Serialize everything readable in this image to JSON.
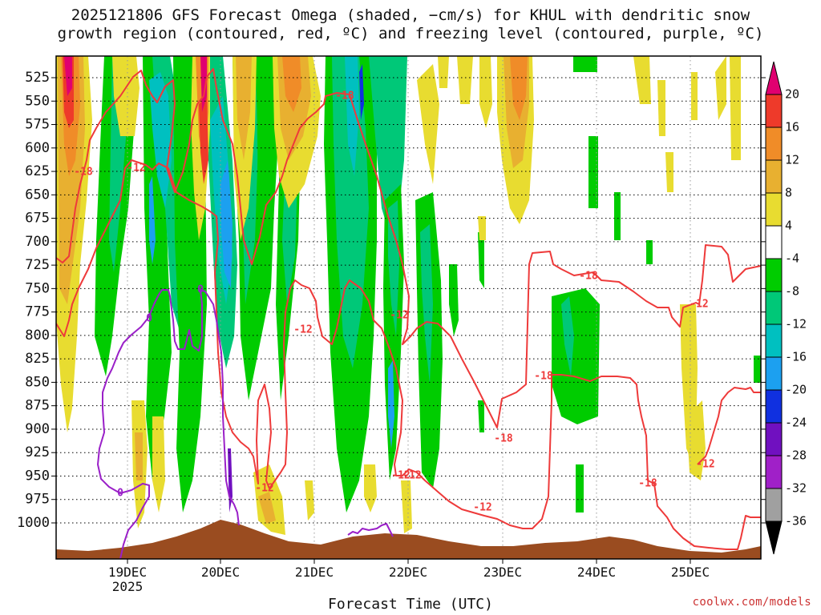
{
  "title_line1": "2025121806 GFS Forecast Omega (shaded, −cm/s) for KHUL with dendritic snow",
  "title_line2": "growth region (contoured, red, ºC) and freezing level (contoured, purple, ºC)",
  "credit": "coolwx.com/models",
  "chart_data": {
    "type": "heatmap",
    "title": "2025121806 GFS Forecast Omega (shaded, −cm/s) for KHUL with dendritic snow growth region (contoured, red, ºC) and freezing level (contoured, purple, ºC)",
    "xlabel": "Forecast Time (UTC)",
    "ylabel": "",
    "y_reversed": true,
    "y_ticks": [
      525,
      550,
      575,
      600,
      625,
      650,
      675,
      700,
      725,
      750,
      775,
      800,
      825,
      850,
      875,
      900,
      925,
      950,
      975,
      1000
    ],
    "x_ticks": [
      "19DEC",
      "20DEC",
      "21DEC",
      "22DEC",
      "23DEC",
      "24DEC",
      "25DEC"
    ],
    "x_sublabel": "2025",
    "colorbar_levels": [
      20,
      16,
      12,
      8,
      4,
      -4,
      -8,
      -12,
      -16,
      -20,
      -24,
      -28,
      -32,
      -36
    ],
    "colorbar_colors": [
      "#e00070",
      "#ee3a2a",
      "#f08c28",
      "#e8b030",
      "#e8dc30",
      "#ffffff",
      "#00cc00",
      "#00c878",
      "#00c0c0",
      "#1ca0f0",
      "#1030e0",
      "#7010c0",
      "#a020c8",
      "#a0a0a0"
    ],
    "grid": true,
    "red_contour_labels": [
      "-18",
      "-12",
      "-18",
      "-18",
      "-12",
      "-12",
      "-12",
      "-18",
      "-18",
      "-12",
      "-12",
      "-12",
      "-18",
      "-12",
      "-12"
    ],
    "purple_contour_labels": [
      "0",
      "0",
      "0"
    ]
  }
}
